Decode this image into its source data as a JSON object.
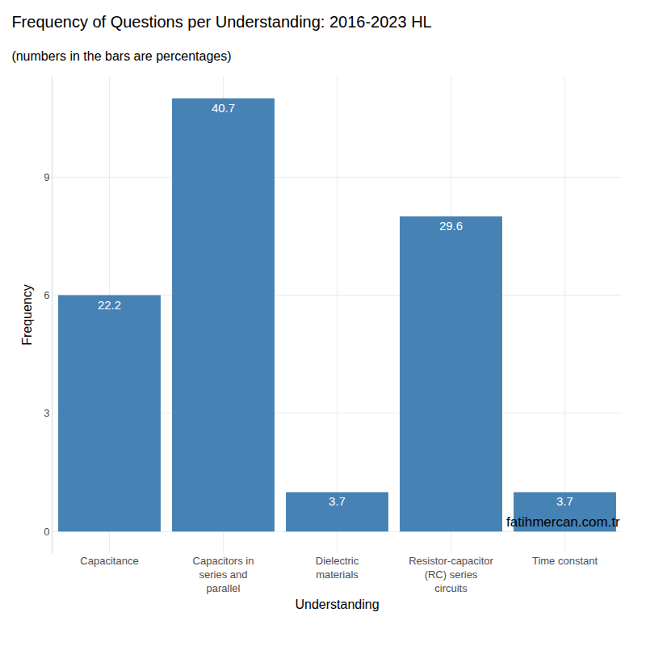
{
  "chart_data": {
    "type": "bar",
    "title": "Frequency of Questions per Understanding: 2016-2023 HL",
    "subtitle": "(numbers in the bars are percentages)",
    "x_label": "Understanding",
    "y_label": "Frequency",
    "caption": "fatihmercan.com.tr",
    "categories": [
      "Capacitance",
      "Capacitors in series and parallel",
      "Dielectric materials",
      "Resistor-capacitor (RC) series circuits",
      "Time constant"
    ],
    "values": [
      6,
      11,
      1,
      8,
      1
    ],
    "percentages": [
      22.2,
      40.7,
      3.7,
      29.6,
      3.7
    ],
    "color": "#4682b4",
    "ylim": [
      -0.55,
      11.55
    ],
    "yticks": [
      0,
      3,
      6,
      9
    ],
    "grid": true
  }
}
